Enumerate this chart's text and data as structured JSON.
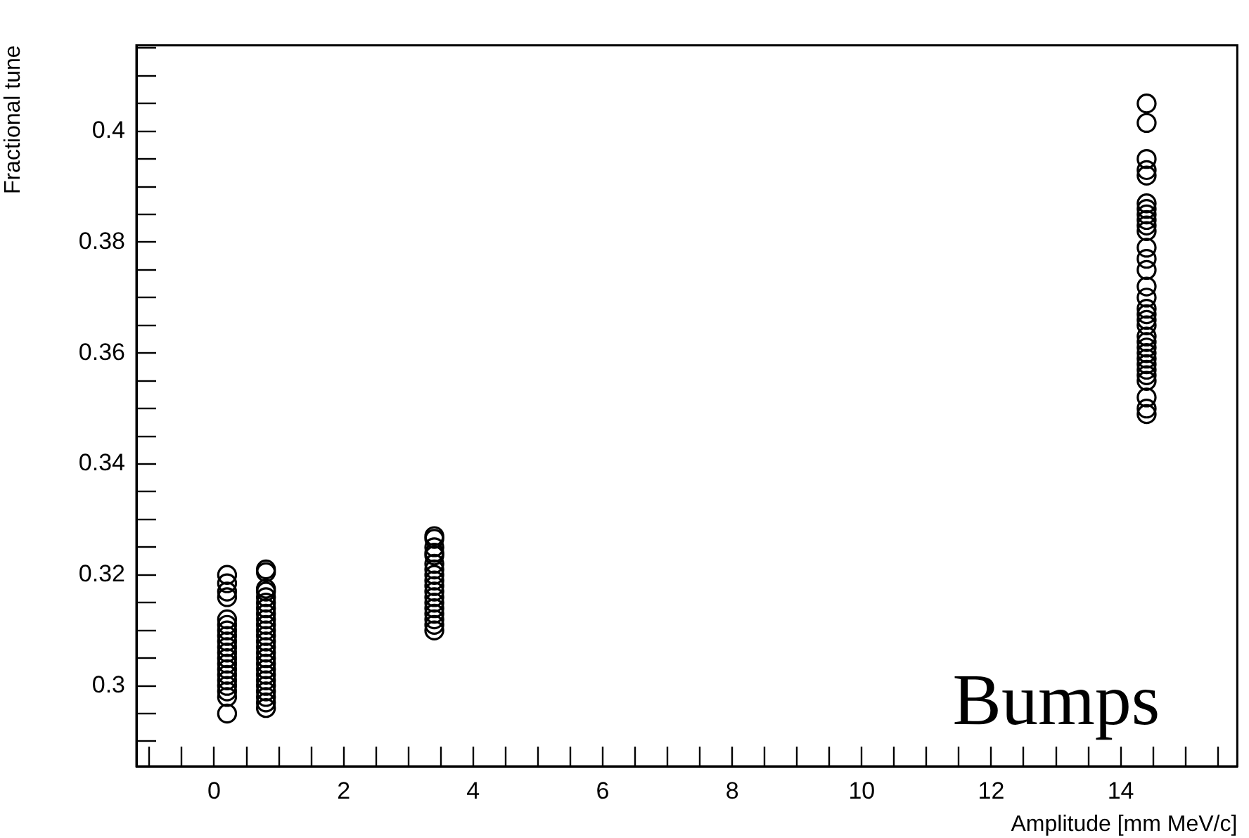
{
  "chart_data": {
    "type": "scatter",
    "xlabel": "Amplitude [mm MeV/c]",
    "ylabel": "Fractional tune",
    "annotations": [
      "Bumps"
    ],
    "marker": "circle",
    "grid": false,
    "legend": false,
    "xlim": [
      -1.2,
      15.8
    ],
    "ylim": [
      0.2855,
      0.4155
    ],
    "xticks": [
      {
        "value": -1,
        "label": null
      },
      {
        "value": -0.5,
        "label": null
      },
      0,
      {
        "value": 0.5,
        "label": null
      },
      {
        "value": 1,
        "label": null
      },
      {
        "value": 1.5,
        "label": null
      },
      2,
      {
        "value": 2.5,
        "label": null
      },
      {
        "value": 3,
        "label": null
      },
      {
        "value": 3.5,
        "label": null
      },
      4,
      {
        "value": 4.5,
        "label": null
      },
      {
        "value": 5,
        "label": null
      },
      {
        "value": 5.5,
        "label": null
      },
      6,
      {
        "value": 6.5,
        "label": null
      },
      {
        "value": 7,
        "label": null
      },
      {
        "value": 7.5,
        "label": null
      },
      8,
      {
        "value": 8.5,
        "label": null
      },
      {
        "value": 9,
        "label": null
      },
      {
        "value": 9.5,
        "label": null
      },
      10,
      {
        "value": 10.5,
        "label": null
      },
      {
        "value": 11,
        "label": null
      },
      {
        "value": 11.5,
        "label": null
      },
      12,
      {
        "value": 12.5,
        "label": null
      },
      {
        "value": 13,
        "label": null
      },
      {
        "value": 13.5,
        "label": null
      },
      14,
      {
        "value": 14.5,
        "label": null
      },
      {
        "value": 15,
        "label": null
      },
      {
        "value": 15.5,
        "label": null
      }
    ],
    "yticks": [
      {
        "value": 0.29,
        "label": null
      },
      {
        "value": 0.295,
        "label": null
      },
      0.3,
      {
        "value": 0.305,
        "label": null
      },
      {
        "value": 0.31,
        "label": null
      },
      {
        "value": 0.315,
        "label": null
      },
      0.32,
      {
        "value": 0.325,
        "label": null
      },
      {
        "value": 0.33,
        "label": null
      },
      {
        "value": 0.335,
        "label": null
      },
      0.34,
      {
        "value": 0.345,
        "label": null
      },
      {
        "value": 0.35,
        "label": null
      },
      {
        "value": 0.355,
        "label": null
      },
      0.36,
      {
        "value": 0.365,
        "label": null
      },
      {
        "value": 0.37,
        "label": null
      },
      {
        "value": 0.375,
        "label": null
      },
      0.38,
      {
        "value": 0.385,
        "label": null
      },
      {
        "value": 0.39,
        "label": null
      },
      {
        "value": 0.395,
        "label": null
      },
      0.4,
      {
        "value": 0.405,
        "label": null
      },
      {
        "value": 0.41,
        "label": null
      },
      {
        "value": 0.415,
        "label": null
      }
    ],
    "series": [
      {
        "color": "#000000",
        "x": [
          0.2,
          0.2,
          0.2,
          0.2,
          0.2,
          0.2,
          0.2,
          0.2,
          0.2,
          0.2,
          0.2,
          0.2,
          0.2,
          0.2,
          0.2,
          0.2,
          0.2,
          0.2,
          0.2,
          0.2,
          0.8,
          0.8,
          0.8,
          0.8,
          0.8,
          0.8,
          0.8,
          0.8,
          0.8,
          0.8,
          0.8,
          0.8,
          0.8,
          0.8,
          0.8,
          0.8,
          0.8,
          0.8,
          0.8,
          0.8,
          0.8,
          0.8,
          0.8,
          0.8,
          0.8,
          3.4,
          3.4,
          3.4,
          3.4,
          3.4,
          3.4,
          3.4,
          3.4,
          3.4,
          3.4,
          3.4,
          3.4,
          3.4,
          3.4,
          3.4,
          3.4,
          3.4,
          3.4,
          14.4,
          14.4,
          14.4,
          14.4,
          14.4,
          14.4,
          14.4,
          14.4,
          14.4,
          14.4,
          14.4,
          14.4,
          14.4,
          14.4,
          14.4,
          14.4,
          14.4,
          14.4,
          14.4,
          14.4,
          14.4,
          14.4,
          14.4,
          14.4,
          14.4,
          14.4,
          14.4,
          14.4,
          14.4,
          14.4,
          14.4,
          14.4
        ],
        "values": [
          0.32,
          0.3185,
          0.317,
          0.316,
          0.312,
          0.311,
          0.31,
          0.309,
          0.308,
          0.307,
          0.306,
          0.305,
          0.304,
          0.303,
          0.302,
          0.301,
          0.3,
          0.299,
          0.298,
          0.295,
          0.321,
          0.3205,
          0.3175,
          0.317,
          0.316,
          0.315,
          0.314,
          0.313,
          0.312,
          0.311,
          0.31,
          0.309,
          0.308,
          0.307,
          0.306,
          0.305,
          0.304,
          0.303,
          0.302,
          0.301,
          0.3,
          0.299,
          0.298,
          0.297,
          0.296,
          0.327,
          0.3265,
          0.325,
          0.324,
          0.3235,
          0.322,
          0.321,
          0.32,
          0.319,
          0.318,
          0.317,
          0.316,
          0.315,
          0.314,
          0.313,
          0.312,
          0.311,
          0.31,
          0.405,
          0.4015,
          0.395,
          0.393,
          0.392,
          0.387,
          0.386,
          0.385,
          0.384,
          0.383,
          0.382,
          0.379,
          0.377,
          0.375,
          0.372,
          0.37,
          0.368,
          0.367,
          0.366,
          0.365,
          0.363,
          0.362,
          0.361,
          0.36,
          0.359,
          0.358,
          0.357,
          0.356,
          0.355,
          0.352,
          0.35,
          0.349
        ]
      }
    ]
  }
}
